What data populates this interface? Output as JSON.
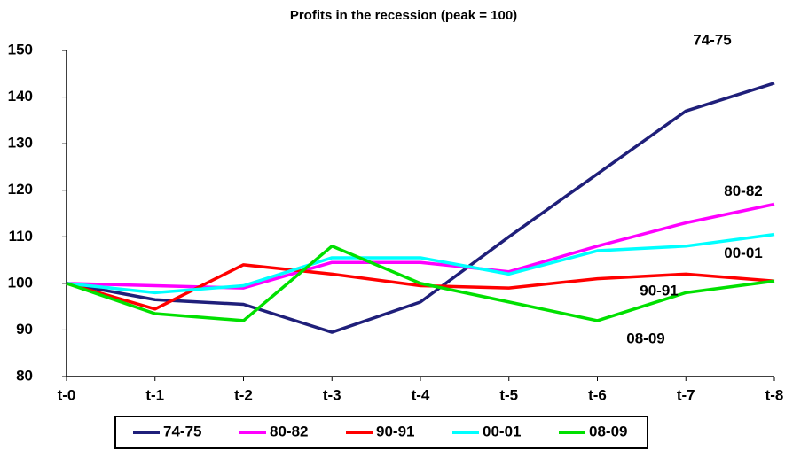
{
  "chart_data": {
    "type": "line",
    "title": "Profits in the recession (peak = 100)",
    "categories": [
      "t-0",
      "t-1",
      "t-2",
      "t-3",
      "t-4",
      "t-5",
      "t-6",
      "t-7",
      "t-8"
    ],
    "series": [
      {
        "name": "74-75",
        "color": "#1f1f7a",
        "values": [
          100,
          96.5,
          95.5,
          89.5,
          96,
          110,
          123.5,
          137,
          143
        ]
      },
      {
        "name": "80-82",
        "color": "#ff00ff",
        "values": [
          100,
          99.5,
          99,
          104.5,
          104.5,
          102.5,
          108,
          113,
          117
        ]
      },
      {
        "name": "90-91",
        "color": "#ff0000",
        "values": [
          100,
          94.5,
          104,
          102,
          99.5,
          99,
          101,
          102,
          100.5
        ]
      },
      {
        "name": "00-01",
        "color": "#00ffff",
        "values": [
          100,
          98,
          99.5,
          105.5,
          105.5,
          102,
          107,
          108,
          110.5
        ]
      },
      {
        "name": "08-09",
        "color": "#00e000",
        "values": [
          100,
          93.5,
          92,
          108,
          100,
          96,
          92,
          98,
          100.5
        ]
      }
    ],
    "annotations": [
      "74-75",
      "80-82",
      "00-01",
      "90-91",
      "08-09"
    ],
    "ylim": [
      80,
      150
    ],
    "yticks": [
      80,
      90,
      100,
      110,
      120,
      130,
      140,
      150
    ],
    "grid": false
  }
}
